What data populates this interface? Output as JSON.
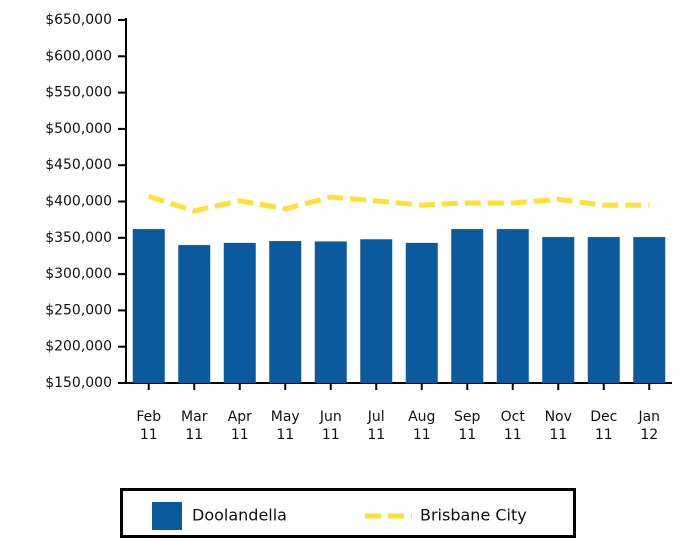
{
  "chart_data": {
    "type": "bar",
    "categories": [
      [
        "Feb",
        "11"
      ],
      [
        "Mar",
        "11"
      ],
      [
        "Apr",
        "11"
      ],
      [
        "May",
        "11"
      ],
      [
        "Jun",
        "11"
      ],
      [
        "Jul",
        "11"
      ],
      [
        "Aug",
        "11"
      ],
      [
        "Sep",
        "11"
      ],
      [
        "Oct",
        "11"
      ],
      [
        "Nov",
        "11"
      ],
      [
        "Dec",
        "11"
      ],
      [
        "Jan",
        "12"
      ]
    ],
    "series": [
      {
        "name": "Doolandella",
        "type": "bar",
        "color": "#0b5a9e",
        "values": [
          362000,
          340000,
          343000,
          345500,
          345000,
          348000,
          343000,
          362000,
          362000,
          351000,
          351000,
          351000
        ]
      },
      {
        "name": "Brisbane City",
        "type": "line",
        "color": "#ffe135",
        "values": [
          407000,
          387000,
          401000,
          390000,
          406000,
          401000,
          395000,
          398000,
          398000,
          403000,
          395000,
          395000
        ]
      }
    ],
    "ylim": [
      150000,
      650000
    ],
    "yticks": [
      {
        "value": 150000,
        "label": "$150,000"
      },
      {
        "value": 200000,
        "label": "$200,000"
      },
      {
        "value": 250000,
        "label": "$250,000"
      },
      {
        "value": 300000,
        "label": "$300,000"
      },
      {
        "value": 350000,
        "label": "$350,000"
      },
      {
        "value": 400000,
        "label": "$400,000"
      },
      {
        "value": 450000,
        "label": "$450,000"
      },
      {
        "value": 500000,
        "label": "$500,000"
      },
      {
        "value": 550000,
        "label": "$550,000"
      },
      {
        "value": 600000,
        "label": "$600,000"
      },
      {
        "value": 650000,
        "label": "$650,000"
      }
    ],
    "grid": false,
    "legend": "bottom"
  }
}
